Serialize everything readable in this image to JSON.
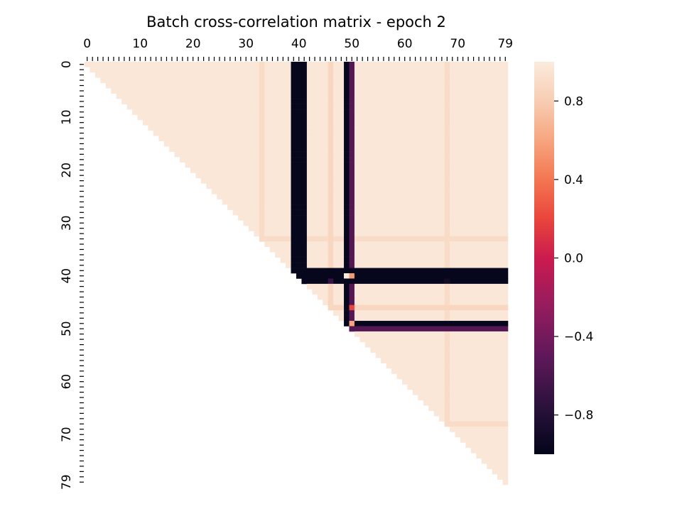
{
  "chart_data": {
    "type": "heatmap",
    "title": "Batch cross-correlation matrix - epoch 2",
    "n": 80,
    "mask": "lower-triangle-below-diagonal",
    "x_ticks": [
      0,
      10,
      20,
      30,
      40,
      50,
      60,
      70,
      79
    ],
    "y_ticks": [
      0,
      10,
      20,
      30,
      40,
      50,
      60,
      70,
      79
    ],
    "colorbar": {
      "vmin": -1.0,
      "vmax": 1.0,
      "ticks": [
        0.8,
        0.4,
        0.0,
        -0.4,
        -0.8
      ],
      "tick_labels": [
        "0.8",
        "0.4",
        "0.0",
        "−0.4",
        "−0.8"
      ]
    },
    "colormap": "rocket",
    "default_value": 0.97,
    "row_cells_note_values": {
      "strong_negative_features": [
        39,
        40,
        41,
        49
      ],
      "moderate_negative_feature": 50,
      "faint_features": [
        33,
        46,
        68
      ]
    },
    "feature_values": {
      "39": -0.98,
      "40": -0.98,
      "41": -0.98,
      "49": -0.98,
      "50": -0.55,
      "33": 0.9,
      "46": 0.86,
      "68": 0.9
    },
    "special_cells": [
      {
        "row": 40,
        "col": 50,
        "value": 0.55
      },
      {
        "row": 40,
        "col": 49,
        "value": 1.0
      },
      {
        "row": 46,
        "col": 49,
        "value": -0.95
      },
      {
        "row": 46,
        "col": 50,
        "value": 0.2
      },
      {
        "row": 49,
        "col": 50,
        "value": 0.6
      },
      {
        "row": 41,
        "col": 42,
        "value": -0.98
      },
      {
        "row": 41,
        "col": 46,
        "value": -0.7
      },
      {
        "row": 41,
        "col": 68,
        "value": -0.9
      }
    ]
  }
}
